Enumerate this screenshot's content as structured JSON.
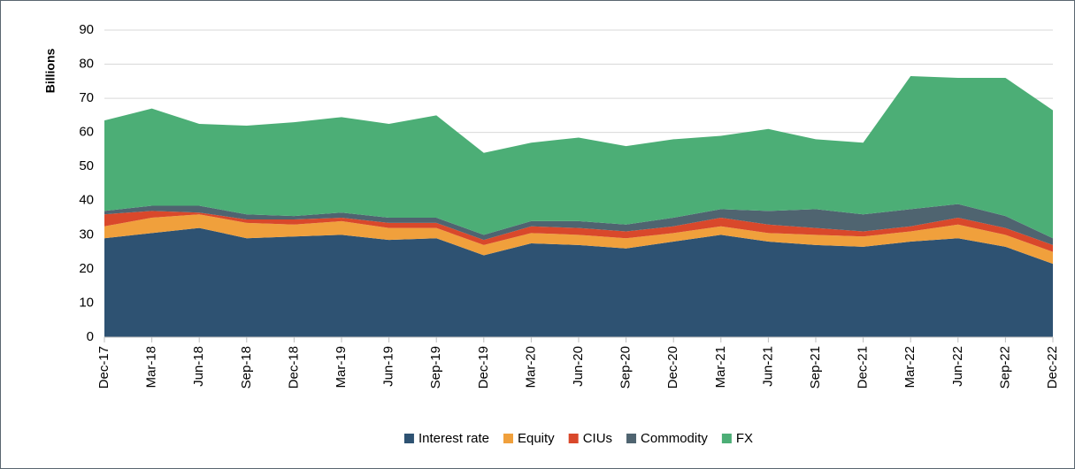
{
  "chart_data": {
    "type": "stacked-area",
    "y_label": "Billions",
    "categories": [
      "Dec-17",
      "Mar-18",
      "Jun-18",
      "Sep-18",
      "Dec-18",
      "Mar-19",
      "Jun-19",
      "Sep-19",
      "Dec-19",
      "Mar-20",
      "Jun-20",
      "Sep-20",
      "Dec-20",
      "Mar-21",
      "Jun-21",
      "Sep-21",
      "Dec-21",
      "Mar-22",
      "Jun-22",
      "Sep-22",
      "Dec-22"
    ],
    "series": [
      {
        "name": "Interest rate",
        "color": "#2e5272",
        "values": [
          29,
          30.5,
          32,
          29,
          29.5,
          30,
          28.5,
          29,
          24,
          27.5,
          27,
          26,
          28,
          30,
          28,
          27,
          26.5,
          28,
          29,
          26.5,
          21.5
        ]
      },
      {
        "name": "Equity",
        "color": "#f0a03c",
        "values": [
          3.5,
          4.5,
          4,
          4.5,
          3.5,
          4,
          3.5,
          3,
          3,
          3,
          3,
          3,
          2.5,
          2.5,
          2.5,
          3,
          3,
          3,
          4,
          3.5,
          3.5
        ]
      },
      {
        "name": "CIUs",
        "color": "#d9482b",
        "values": [
          3.5,
          2,
          0.5,
          1,
          1.5,
          1,
          1.5,
          1.5,
          1.5,
          2,
          2,
          2,
          2,
          2.5,
          2.5,
          2,
          1.5,
          1.5,
          2,
          2,
          2
        ]
      },
      {
        "name": "Commodity",
        "color": "#4f6470",
        "values": [
          1,
          1.5,
          2,
          1.5,
          1,
          1.5,
          1.5,
          1.5,
          1.5,
          1.5,
          2,
          2,
          2.5,
          2.5,
          4,
          5.5,
          5,
          5,
          4,
          3.5,
          2
        ]
      },
      {
        "name": "FX",
        "color": "#4cae76",
        "values": [
          26.5,
          28.5,
          24,
          26,
          27.5,
          28,
          27.5,
          30,
          24,
          23,
          24.5,
          23,
          23,
          21.5,
          24,
          20.5,
          21,
          39,
          37,
          40.5,
          37.5
        ]
      }
    ],
    "ylim": [
      0,
      90
    ],
    "yticks": [
      0,
      10,
      20,
      30,
      40,
      50,
      60,
      70,
      80,
      90
    ],
    "grid": true,
    "legend": "bottom"
  }
}
